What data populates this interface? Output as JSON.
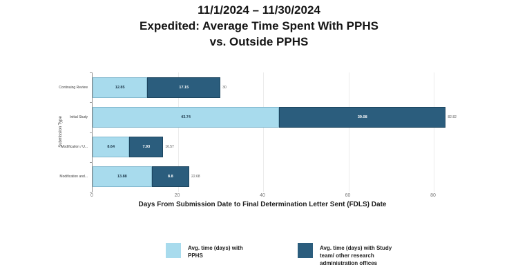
{
  "title": {
    "line1": "11/1/2024 – 11/30/2024",
    "line2": "Expedited: Average Time Spent With PPHS",
    "line3": "vs. Outside PPHS"
  },
  "chart_data": {
    "type": "bar",
    "orientation": "horizontal",
    "stacked": true,
    "title": "Expedited: Average Time Spent With PPHS vs. Outside PPHS",
    "categories": [
      "Continuing Review",
      "Initial Study",
      "Modification / U...",
      "Modification and..."
    ],
    "series": [
      {
        "name": "Avg. time (days) with PPHS",
        "color": "#a8dbed",
        "values": [
          12.85,
          43.74,
          8.64,
          13.88
        ],
        "value_labels": [
          "12.85",
          "43.74",
          "8.64",
          "13.88"
        ]
      },
      {
        "name": "Avg. time (days) with Study team/ other research administration offices",
        "color": "#2b5d7d",
        "values": [
          17.15,
          39.08,
          7.93,
          8.8
        ],
        "value_labels": [
          "17.15",
          "39.08",
          "7.93",
          "8.8"
        ]
      }
    ],
    "totals": [
      30,
      82.82,
      16.57,
      22.68
    ],
    "total_labels": [
      "30",
      "82.82",
      "16.57",
      "22.68"
    ],
    "xticks": [
      "0",
      "20",
      "40",
      "60",
      "80"
    ],
    "xlim": [
      0,
      90
    ],
    "xlabel": "Days From Submission Date to Final Determination Letter Sent (FDLS) Date",
    "ylabel": "Submission Type",
    "grid": true,
    "legend_position": "bottom"
  },
  "legend": [
    {
      "label": "Avg. time (days) with PPHS"
    },
    {
      "label": "Avg. time (days) with Study team/ other research administration offices"
    }
  ]
}
